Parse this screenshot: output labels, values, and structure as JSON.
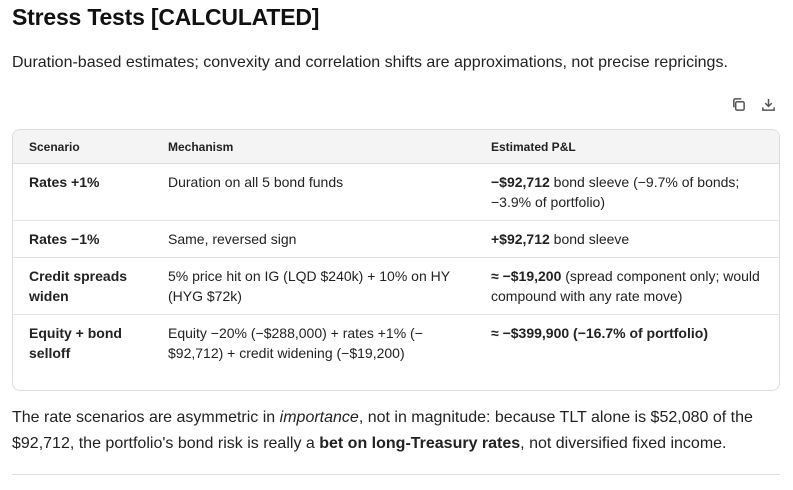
{
  "title": "Stress Tests [CALCULATED]",
  "subtitle": "Duration-based estimates; convexity and correlation shifts are approximations, not precise repricings.",
  "toolbar": {
    "copy_icon": "copy-icon",
    "download_icon": "download-icon"
  },
  "table": {
    "headers": [
      "Scenario",
      "Mechanism",
      "Estimated P&L"
    ],
    "rows": [
      {
        "scenario": "Rates +1%",
        "mechanism": "Duration on all 5 bond funds",
        "pnl_bold": "−$92,712",
        "pnl_rest": " bond sleeve (−9.7% of bonds; −3.9% of portfolio)"
      },
      {
        "scenario": "Rates −1%",
        "mechanism": "Same, reversed sign",
        "pnl_bold": "+$92,712",
        "pnl_rest": " bond sleeve"
      },
      {
        "scenario": "Credit spreads widen",
        "mechanism": "5% price hit on IG (LQD $240k) + 10% on HY (HYG $72k)",
        "pnl_bold": "≈ −$19,200",
        "pnl_rest": " (spread component only; would compound with any rate move)"
      },
      {
        "scenario": "Equity + bond selloff",
        "mechanism": "Equity −20% (−$288,000) + rates +1% (−$92,712) + credit widening (−$19,200)",
        "pnl_bold": "≈ −$399,900 (−16.7% of portfolio)",
        "pnl_rest": ""
      }
    ]
  },
  "paragraph": {
    "p1": "The rate scenarios are asymmetric in ",
    "p2": "importance",
    "p3": ", not in magnitude: because TLT alone is $52,080 of the $92,712, the portfolio's bond risk is really a ",
    "p4": "bet on long-Treasury rates",
    "p5": ", not diversified fixed income."
  }
}
